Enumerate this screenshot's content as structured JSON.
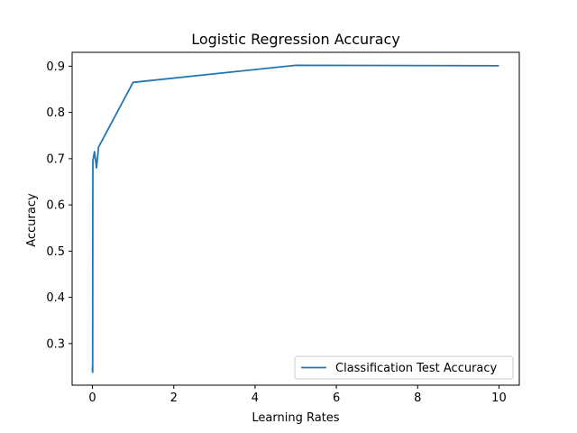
{
  "chart_data": {
    "type": "line",
    "title": "Logistic Regression Accuracy",
    "xlabel": "Learning Rates",
    "ylabel": "Accuracy",
    "xlim": [
      -0.5,
      10.5
    ],
    "ylim": [
      0.21,
      0.93
    ],
    "xticks": [
      0,
      2,
      4,
      6,
      8,
      10
    ],
    "yticks": [
      0.3,
      0.4,
      0.5,
      0.6,
      0.7,
      0.8,
      0.9
    ],
    "xtick_labels": [
      "0",
      "2",
      "4",
      "6",
      "8",
      "10"
    ],
    "ytick_labels": [
      "0.3",
      "0.4",
      "0.5",
      "0.6",
      "0.7",
      "0.8",
      "0.9"
    ],
    "grid": false,
    "legend_position": "lower-right",
    "series": [
      {
        "name": "Classification Test Accuracy",
        "color": "#1f77b4",
        "x": [
          0.0001,
          0.001,
          0.005,
          0.01,
          0.05,
          0.1,
          0.15,
          1,
          5,
          10
        ],
        "y": [
          0.25,
          0.24,
          0.238,
          0.695,
          0.715,
          0.68,
          0.725,
          0.865,
          0.902,
          0.901
        ]
      }
    ]
  }
}
